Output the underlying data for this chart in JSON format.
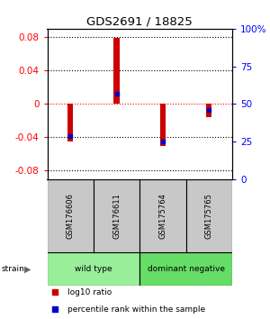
{
  "title": "GDS2691 / 18825",
  "samples": [
    "GSM176606",
    "GSM176611",
    "GSM175764",
    "GSM175765"
  ],
  "groups": [
    {
      "name": "wild type",
      "indices": [
        0,
        1
      ],
      "color": "#99EE99"
    },
    {
      "name": "dominant negative",
      "indices": [
        2,
        3
      ],
      "color": "#66DD66"
    }
  ],
  "log10_ratio": [
    -0.045,
    0.079,
    -0.05,
    -0.016
  ],
  "percentile_rank": [
    0.285,
    0.57,
    0.25,
    0.46
  ],
  "ylim": [
    -0.09,
    0.09
  ],
  "yticks": [
    -0.08,
    -0.04,
    0,
    0.04,
    0.08
  ],
  "ytick_labels_left": [
    "-0.08",
    "-0.04",
    "0",
    "0.04",
    "0.08"
  ],
  "ytick_labels_right": [
    "0",
    "25",
    "50",
    "75",
    "100%"
  ],
  "bar_color": "#CC0000",
  "dot_color": "#0000CC",
  "bar_width": 0.12,
  "strain_label": "strain",
  "legend_ratio": "log10 ratio",
  "legend_percentile": "percentile rank within the sample"
}
